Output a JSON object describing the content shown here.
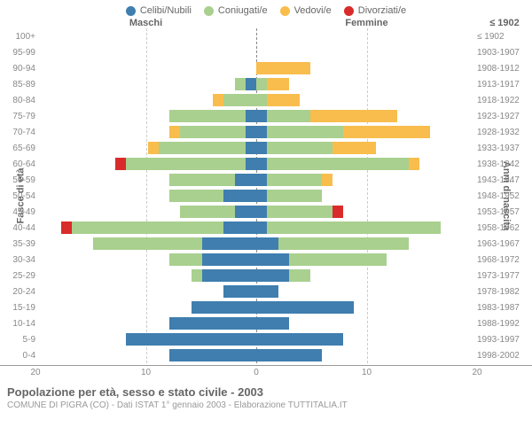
{
  "legend": [
    {
      "label": "Celibi/Nubili",
      "color": "#3f7eaf"
    },
    {
      "label": "Coniugati/e",
      "color": "#a9d08e"
    },
    {
      "label": "Vedovi/e",
      "color": "#f9bd4d"
    },
    {
      "label": "Divorziati/e",
      "color": "#d92b2b"
    }
  ],
  "headers": {
    "male": "Maschi",
    "female": "Femmine",
    "birth_header": "≤ 1902"
  },
  "axis": {
    "y_left_title": "Fasce di età",
    "y_right_title": "Anni di nascita",
    "x_max": 20,
    "x_ticks_male": [
      20,
      10,
      0
    ],
    "x_ticks_female": [
      0,
      10,
      20
    ]
  },
  "colors": {
    "single": "#3f7eaf",
    "married": "#a9d08e",
    "widowed": "#f9bd4d",
    "divorced": "#d92b2b",
    "grid": "#cccccc",
    "center": "#888888",
    "text": "#666666"
  },
  "rows": [
    {
      "age": "100+",
      "year": "≤ 1902",
      "m": {
        "s": 0,
        "m": 0,
        "w": 0,
        "d": 0
      },
      "f": {
        "s": 0,
        "m": 0,
        "w": 0,
        "d": 0
      }
    },
    {
      "age": "95-99",
      "year": "1903-1907",
      "m": {
        "s": 0,
        "m": 0,
        "w": 0,
        "d": 0
      },
      "f": {
        "s": 0,
        "m": 0,
        "w": 0,
        "d": 0
      }
    },
    {
      "age": "90-94",
      "year": "1908-1912",
      "m": {
        "s": 0,
        "m": 0,
        "w": 0,
        "d": 0
      },
      "f": {
        "s": 0,
        "m": 0,
        "w": 5,
        "d": 0
      }
    },
    {
      "age": "85-89",
      "year": "1913-1917",
      "m": {
        "s": 1,
        "m": 1,
        "w": 0,
        "d": 0
      },
      "f": {
        "s": 0,
        "m": 1,
        "w": 2,
        "d": 0
      }
    },
    {
      "age": "80-84",
      "year": "1918-1922",
      "m": {
        "s": 0,
        "m": 3,
        "w": 1,
        "d": 0
      },
      "f": {
        "s": 0,
        "m": 1,
        "w": 3,
        "d": 0
      }
    },
    {
      "age": "75-79",
      "year": "1923-1927",
      "m": {
        "s": 1,
        "m": 7,
        "w": 0,
        "d": 0
      },
      "f": {
        "s": 1,
        "m": 4,
        "w": 8,
        "d": 0
      }
    },
    {
      "age": "70-74",
      "year": "1928-1932",
      "m": {
        "s": 1,
        "m": 6,
        "w": 1,
        "d": 0
      },
      "f": {
        "s": 1,
        "m": 7,
        "w": 8,
        "d": 0
      }
    },
    {
      "age": "65-69",
      "year": "1933-1937",
      "m": {
        "s": 1,
        "m": 8,
        "w": 1,
        "d": 0
      },
      "f": {
        "s": 1,
        "m": 6,
        "w": 4,
        "d": 0
      }
    },
    {
      "age": "60-64",
      "year": "1938-1942",
      "m": {
        "s": 1,
        "m": 11,
        "w": 0,
        "d": 1
      },
      "f": {
        "s": 1,
        "m": 13,
        "w": 1,
        "d": 0
      }
    },
    {
      "age": "55-59",
      "year": "1943-1947",
      "m": {
        "s": 2,
        "m": 6,
        "w": 0,
        "d": 0
      },
      "f": {
        "s": 1,
        "m": 5,
        "w": 1,
        "d": 0
      }
    },
    {
      "age": "50-54",
      "year": "1948-1952",
      "m": {
        "s": 3,
        "m": 5,
        "w": 0,
        "d": 0
      },
      "f": {
        "s": 1,
        "m": 5,
        "w": 0,
        "d": 0
      }
    },
    {
      "age": "45-49",
      "year": "1953-1957",
      "m": {
        "s": 2,
        "m": 5,
        "w": 0,
        "d": 0
      },
      "f": {
        "s": 1,
        "m": 6,
        "w": 0,
        "d": 1
      }
    },
    {
      "age": "40-44",
      "year": "1958-1962",
      "m": {
        "s": 3,
        "m": 14,
        "w": 0,
        "d": 1
      },
      "f": {
        "s": 1,
        "m": 16,
        "w": 0,
        "d": 0
      }
    },
    {
      "age": "35-39",
      "year": "1963-1967",
      "m": {
        "s": 5,
        "m": 10,
        "w": 0,
        "d": 0
      },
      "f": {
        "s": 2,
        "m": 12,
        "w": 0,
        "d": 0
      }
    },
    {
      "age": "30-34",
      "year": "1968-1972",
      "m": {
        "s": 5,
        "m": 3,
        "w": 0,
        "d": 0
      },
      "f": {
        "s": 3,
        "m": 9,
        "w": 0,
        "d": 0
      }
    },
    {
      "age": "25-29",
      "year": "1973-1977",
      "m": {
        "s": 5,
        "m": 1,
        "w": 0,
        "d": 0
      },
      "f": {
        "s": 3,
        "m": 2,
        "w": 0,
        "d": 0
      }
    },
    {
      "age": "20-24",
      "year": "1978-1982",
      "m": {
        "s": 3,
        "m": 0,
        "w": 0,
        "d": 0
      },
      "f": {
        "s": 2,
        "m": 0,
        "w": 0,
        "d": 0
      }
    },
    {
      "age": "15-19",
      "year": "1983-1987",
      "m": {
        "s": 6,
        "m": 0,
        "w": 0,
        "d": 0
      },
      "f": {
        "s": 9,
        "m": 0,
        "w": 0,
        "d": 0
      }
    },
    {
      "age": "10-14",
      "year": "1988-1992",
      "m": {
        "s": 8,
        "m": 0,
        "w": 0,
        "d": 0
      },
      "f": {
        "s": 3,
        "m": 0,
        "w": 0,
        "d": 0
      }
    },
    {
      "age": "5-9",
      "year": "1993-1997",
      "m": {
        "s": 12,
        "m": 0,
        "w": 0,
        "d": 0
      },
      "f": {
        "s": 8,
        "m": 0,
        "w": 0,
        "d": 0
      }
    },
    {
      "age": "0-4",
      "year": "1998-2002",
      "m": {
        "s": 8,
        "m": 0,
        "w": 0,
        "d": 0
      },
      "f": {
        "s": 6,
        "m": 0,
        "w": 0,
        "d": 0
      }
    }
  ],
  "footer": {
    "title": "Popolazione per età, sesso e stato civile - 2003",
    "subtitle": "COMUNE DI PIGRA (CO) - Dati ISTAT 1° gennaio 2003 - Elaborazione TUTTITALIA.IT"
  }
}
